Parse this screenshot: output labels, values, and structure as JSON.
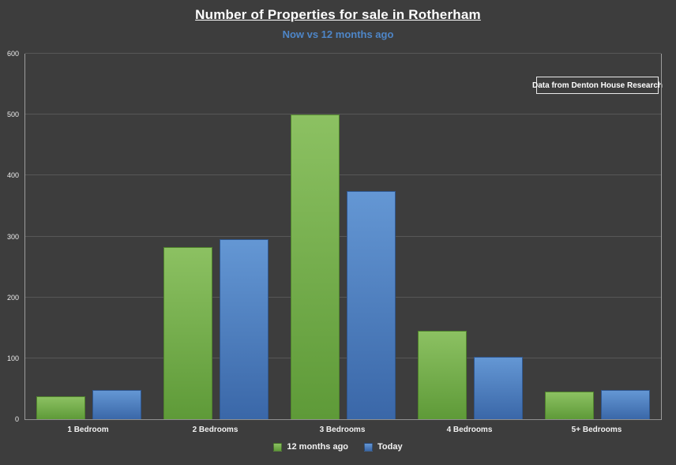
{
  "header": {
    "title": "Number of Properties for sale in Rotherham",
    "subtitle": "Now vs 12 months ago"
  },
  "annotation": {
    "label": "Data from Denton House Research"
  },
  "colors": {
    "background": "#3d3d3d",
    "subtitle_blue": "#4e86c8",
    "gridline": "#575757",
    "series_green": "#6fae3f",
    "series_blue": "#4476b9"
  },
  "chart_data": {
    "type": "bar",
    "title": "Number of Properties for sale in Rotherham",
    "subtitle": "Now vs 12 months ago",
    "categories": [
      "1 Bedroom",
      "2 Bedrooms",
      "3 Bedrooms",
      "4 Bedrooms",
      "5+ Bedrooms"
    ],
    "series": [
      {
        "name": "12 months ago",
        "values": [
          38,
          282,
          500,
          145,
          45
        ],
        "color": "#6fae3f",
        "gradient": [
          "#8cc162",
          "#5e9a38"
        ],
        "border": "#4f822c"
      },
      {
        "name": "Today",
        "values": [
          48,
          295,
          375,
          102,
          48
        ],
        "color": "#4476b9",
        "gradient": [
          "#6497d4",
          "#3a67a8"
        ],
        "border": "#2f578f"
      }
    ],
    "xlabel": "",
    "ylabel": "",
    "ylim": [
      0,
      600
    ],
    "yticks": [
      0,
      100,
      200,
      300,
      400,
      500,
      600
    ],
    "grid": true,
    "legend_position": "bottom"
  }
}
